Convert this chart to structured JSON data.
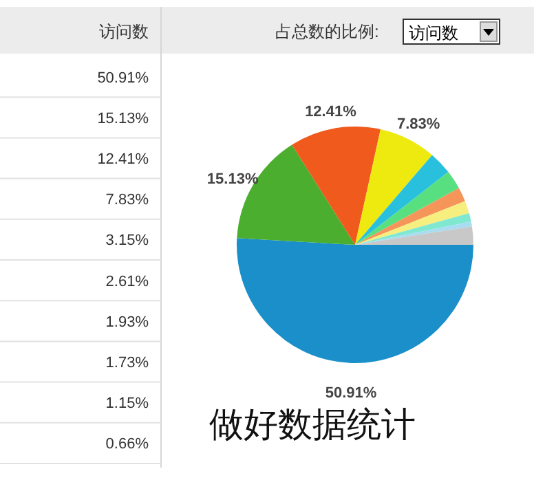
{
  "chart_data": {
    "type": "pie",
    "categories": [
      null,
      null,
      null,
      null,
      null,
      null,
      null,
      null,
      null,
      null,
      null
    ],
    "values": [
      50.91,
      15.13,
      12.41,
      7.83,
      3.15,
      2.61,
      1.93,
      1.73,
      1.15,
      0.66,
      2.49
    ],
    "colors": [
      "#1a8fc9",
      "#4cae2e",
      "#f05a1c",
      "#eeea10",
      "#29c0de",
      "#58e080",
      "#f5955a",
      "#f7ee80",
      "#80e8d0",
      "#a8dcf0",
      "#c8c8c8"
    ],
    "value_labels": [
      "50.91%",
      "15.13%",
      "12.41%",
      "7.83%",
      null,
      null,
      null,
      null,
      null,
      null,
      null
    ],
    "annotations": [
      "访问数",
      "占总数的比例:",
      "访问数",
      "做好数据统计",
      "50.91%",
      "15.13%",
      "12.41%",
      "7.83%",
      "3.15%",
      "2.61%",
      "1.93%",
      "1.73%",
      "1.15%",
      "0.66%"
    ]
  }
}
